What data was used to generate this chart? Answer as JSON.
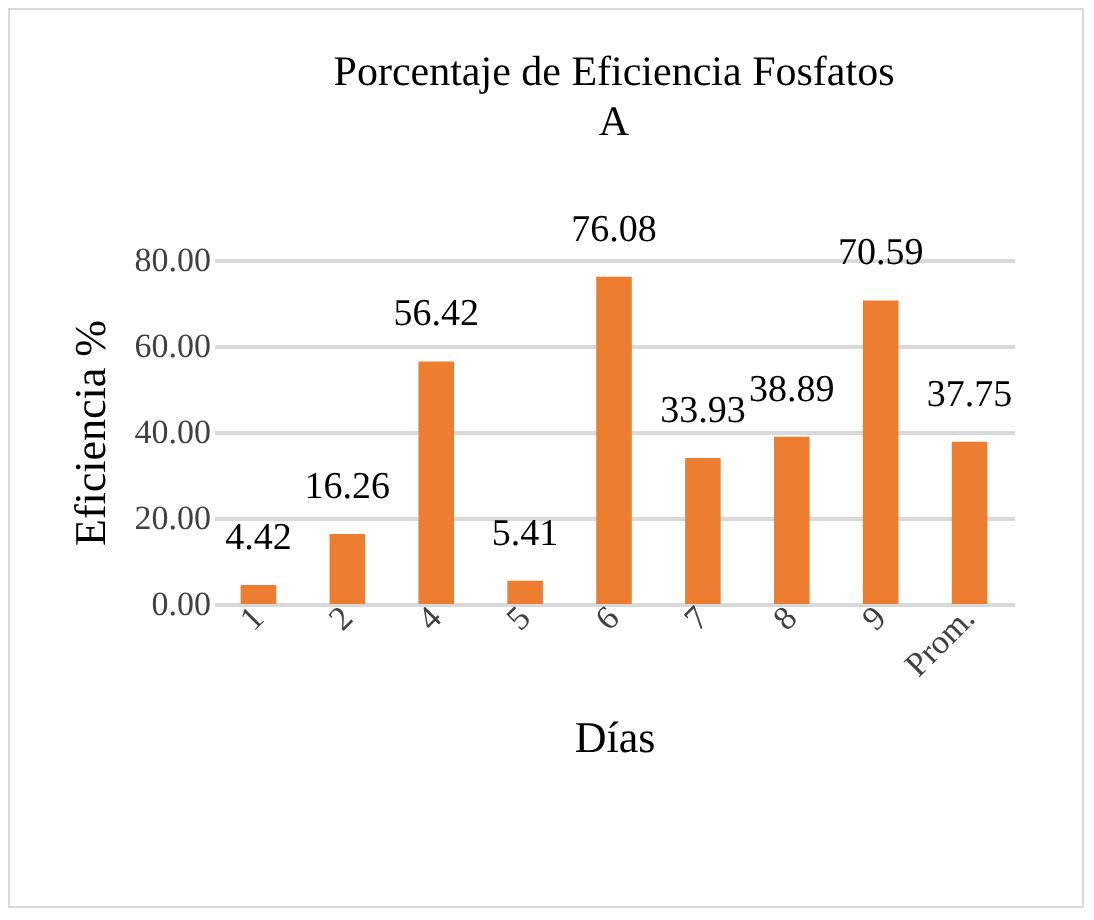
{
  "chart_data": {
    "type": "bar",
    "title": "Porcentaje de Eficiencia Fosfatos",
    "subtitle": "A",
    "xlabel": "Días",
    "ylabel": "Eficiencia %",
    "categories": [
      "1",
      "2",
      "4",
      "5",
      "6",
      "7",
      "8",
      "9",
      "Prom."
    ],
    "values": [
      4.42,
      16.26,
      56.42,
      5.41,
      76.08,
      33.93,
      38.89,
      70.59,
      37.75
    ],
    "color": "#ed7d31",
    "ylim": [
      0,
      80
    ],
    "yticks": [
      {
        "value": 0,
        "label": "0.00"
      },
      {
        "value": 20,
        "label": "20.00"
      },
      {
        "value": 40,
        "label": "40.00"
      },
      {
        "value": 60,
        "label": "60.00"
      },
      {
        "value": 80,
        "label": "80.00"
      }
    ],
    "grid": "y",
    "data_labels": true
  }
}
